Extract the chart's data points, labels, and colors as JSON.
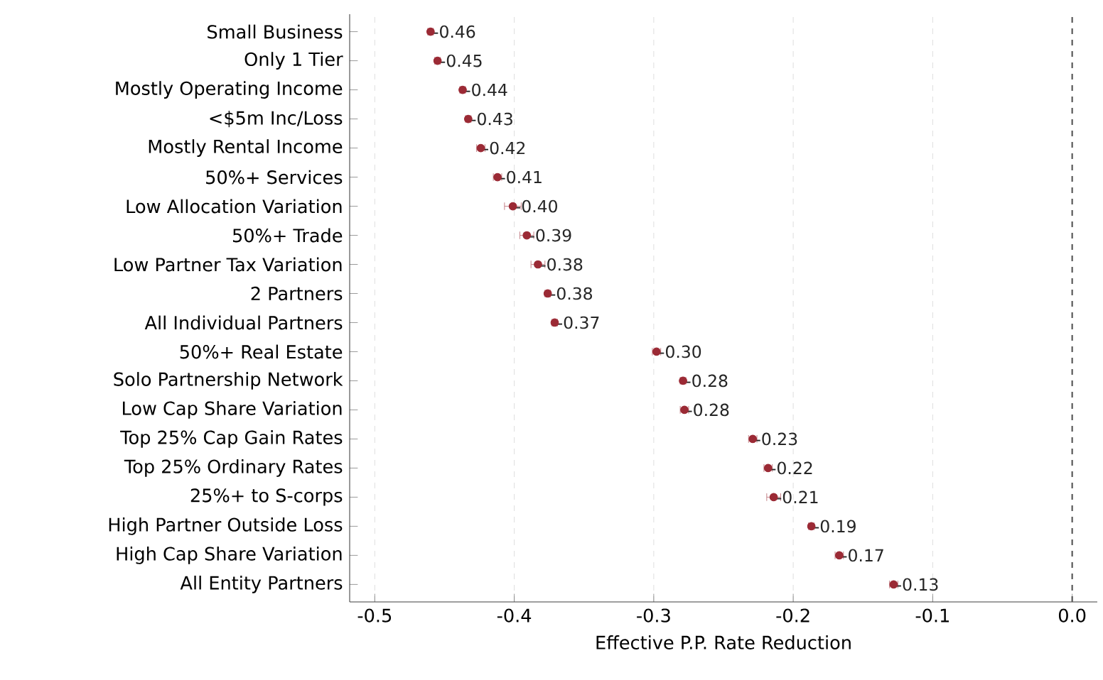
{
  "chart_data": {
    "type": "scatter",
    "orientation": "horizontal",
    "xlabel": "Effective P.P. Rate Reduction",
    "categories": [
      "Small Business",
      "Only 1 Tier",
      "Mostly Operating Income",
      "<$5m Inc/Loss",
      "Mostly Rental Income",
      "50%+ Services",
      "Low Allocation Variation",
      "50%+ Trade",
      "Low Partner Tax Variation",
      "2 Partners",
      "All Individual Partners",
      "50%+ Real Estate",
      "Solo Partnership Network",
      "Low Cap Share Variation",
      "Top 25% Cap Gain Rates",
      "Top 25% Ordinary Rates",
      "25%+ to S-corps",
      "High Partner Outside Loss",
      "High Cap Share Variation",
      "All Entity Partners"
    ],
    "values": [
      -0.46,
      -0.455,
      -0.437,
      -0.433,
      -0.424,
      -0.412,
      -0.401,
      -0.391,
      -0.383,
      -0.376,
      -0.371,
      -0.298,
      -0.279,
      -0.278,
      -0.229,
      -0.218,
      -0.214,
      -0.187,
      -0.167,
      -0.128
    ],
    "errors": [
      0.002,
      0.002,
      0.002,
      0.002,
      0.003,
      0.003,
      0.006,
      0.005,
      0.005,
      0.002,
      0.002,
      0.003,
      0.002,
      0.003,
      0.003,
      0.003,
      0.005,
      0.002,
      0.003,
      0.003
    ],
    "value_labels": [
      "-0.46",
      "-0.45",
      "-0.44",
      "-0.43",
      "-0.42",
      "-0.41",
      "-0.40",
      "-0.39",
      "-0.38",
      "-0.38",
      "-0.37",
      "-0.30",
      "-0.28",
      "-0.28",
      "-0.23",
      "-0.22",
      "-0.21",
      "-0.19",
      "-0.17",
      "-0.13"
    ],
    "color": "#9b2a35",
    "xlim": [
      -0.518,
      0.018
    ],
    "xticks": [
      -0.5,
      -0.4,
      -0.3,
      -0.2,
      -0.1,
      {
        "value": 0,
        "label": "0.0"
      }
    ],
    "grid": "x",
    "ref_lines": [
      {
        "axis": "x",
        "value": 0,
        "color": "#555555",
        "line_style": "dashed"
      }
    ]
  }
}
